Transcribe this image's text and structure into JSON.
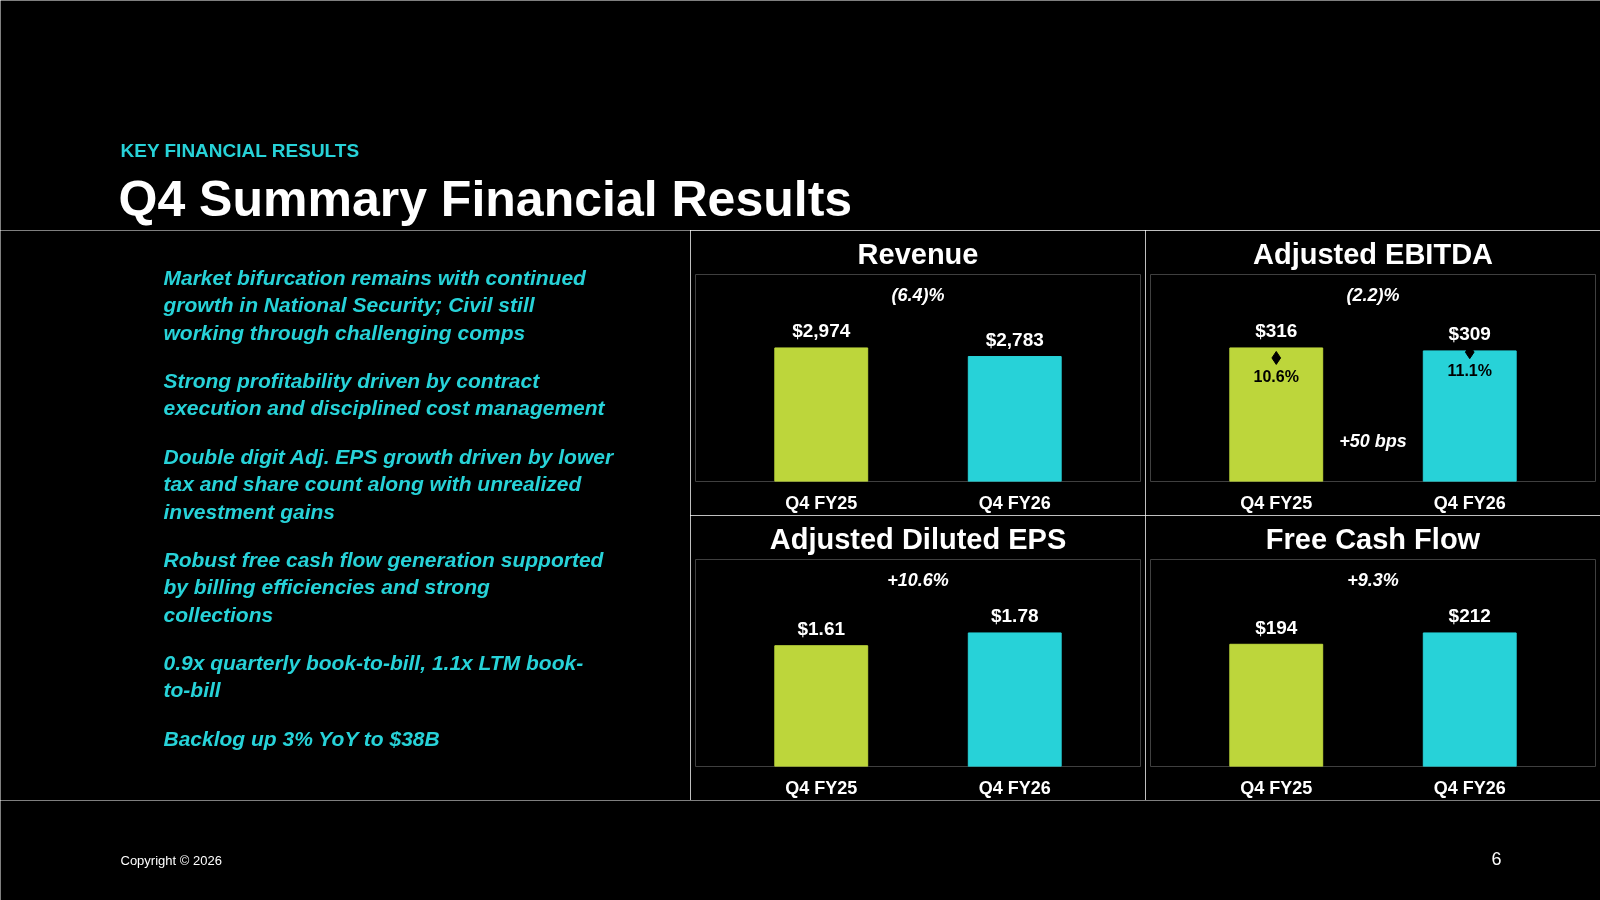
{
  "chart_data": [
    {
      "type": "other",
      "title": "Q4 Summary Financial Results",
      "subtitle": "KEY FINANCIAL RESULTS",
      "annotations": [
        "Market bifurcation remains with continued growth in National Security; Civil still working through challenging comps",
        "Strong profitability driven by contract execution and disciplined cost management",
        "Double digit Adj. EPS growth driven by lower tax and share count along with unrealized investment gains",
        "Robust free cash flow generation supported by billing efficiencies and strong collections",
        "0.9x quarterly book-to-bill, 1.1x LTM book-to-bill",
        "Backlog up 3% YoY to $38B",
        "Copyright © 2026",
        "6"
      ]
    },
    {
      "type": "bar",
      "title": "Revenue",
      "categories": [
        "Q4 FY25",
        "Q4 FY26"
      ],
      "values": [
        2974,
        2783
      ],
      "colors": [
        "#bdd63b",
        "#27d2d8"
      ],
      "value_labels": [
        "$2,974",
        "$2,783"
      ],
      "annotations": [
        "(6.4)%"
      ]
    },
    {
      "type": "bar",
      "title": "Adjusted EBITDA",
      "categories": [
        "Q4 FY25",
        "Q4 FY26"
      ],
      "series": [
        {
          "type": "bar",
          "colors": [
            "#bdd63b",
            "#27d2d8"
          ],
          "values": [
            316,
            309
          ],
          "value_labels": [
            "$316",
            "$309"
          ]
        },
        {
          "type": "scatter",
          "axis": "y2",
          "marker": "diamond",
          "color": "#000000",
          "values": [
            10.6,
            11.1
          ],
          "value_labels": [
            "10.6%",
            "11.1%"
          ]
        }
      ],
      "annotations": [
        "(2.2)%",
        "+50 bps"
      ]
    },
    {
      "type": "bar",
      "title": "Adjusted Diluted EPS",
      "categories": [
        "Q4 FY25",
        "Q4 FY26"
      ],
      "values": [
        1.61,
        1.78
      ],
      "colors": [
        "#bdd63b",
        "#27d2d8"
      ],
      "value_labels": [
        "$1.61",
        "$1.78"
      ],
      "annotations": [
        "+10.6%"
      ]
    },
    {
      "type": "bar",
      "title": "Free Cash Flow",
      "categories": [
        "Q4 FY25",
        "Q4 FY26"
      ],
      "values": [
        194,
        212
      ],
      "colors": [
        "#bdd63b",
        "#27d2d8"
      ],
      "value_labels": [
        "$194",
        "$212"
      ],
      "annotations": [
        "+9.3%"
      ]
    }
  ]
}
